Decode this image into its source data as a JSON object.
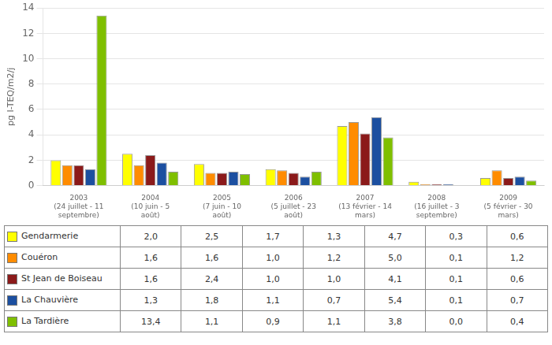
{
  "chart_data": {
    "type": "bar",
    "categories": [
      "2003\n(24 juillet - 11\nseptembre)",
      "2004\n(10 juin - 5\naoût)",
      "2005\n(7 juin - 10\naoût)",
      "2006\n(5 juillet - 23\naoût)",
      "2007\n(13 février - 14\nmars)",
      "2008\n(16 juillet - 3\nseptembre)",
      "2009\n(5 février - 30\nmars)"
    ],
    "series": [
      {
        "name": "Gendarmerie",
        "color": "#FFFF00",
        "values": [
          2.0,
          2.5,
          1.7,
          1.3,
          4.7,
          0.3,
          0.6
        ],
        "value_labels": [
          "2,0",
          "2,5",
          "1,7",
          "1,3",
          "4,7",
          "0,3",
          "0,6"
        ]
      },
      {
        "name": "Couéron",
        "color": "#FF8C00",
        "values": [
          1.6,
          1.6,
          1.0,
          1.2,
          5.0,
          0.1,
          1.2
        ],
        "value_labels": [
          "1,6",
          "1,6",
          "1,0",
          "1,2",
          "5,0",
          "0,1",
          "1,2"
        ]
      },
      {
        "name": "St Jean de Boiseau",
        "color": "#8B1A1A",
        "values": [
          1.6,
          2.4,
          1.0,
          1.0,
          4.1,
          0.1,
          0.6
        ],
        "value_labels": [
          "1,6",
          "2,4",
          "1,0",
          "1,0",
          "4,1",
          "0,1",
          "0,6"
        ]
      },
      {
        "name": "La Chauvière",
        "color": "#1C4FA0",
        "values": [
          1.3,
          1.8,
          1.1,
          0.7,
          5.4,
          0.1,
          0.7
        ],
        "value_labels": [
          "1,3",
          "1,8",
          "1,1",
          "0,7",
          "5,4",
          "0,1",
          "0,7"
        ]
      },
      {
        "name": "La Tardière",
        "color": "#7FBF00",
        "values": [
          13.4,
          1.1,
          0.9,
          1.1,
          3.8,
          0.0,
          0.4
        ],
        "value_labels": [
          "13,4",
          "1,1",
          "0,9",
          "1,1",
          "3,8",
          "0,0",
          "0,4"
        ]
      }
    ],
    "y_label": "pg I-TEQ/m2/j",
    "ylim": [
      0,
      14
    ],
    "yticks": [
      0,
      2,
      4,
      6,
      8,
      10,
      12,
      14
    ],
    "grid": true
  }
}
